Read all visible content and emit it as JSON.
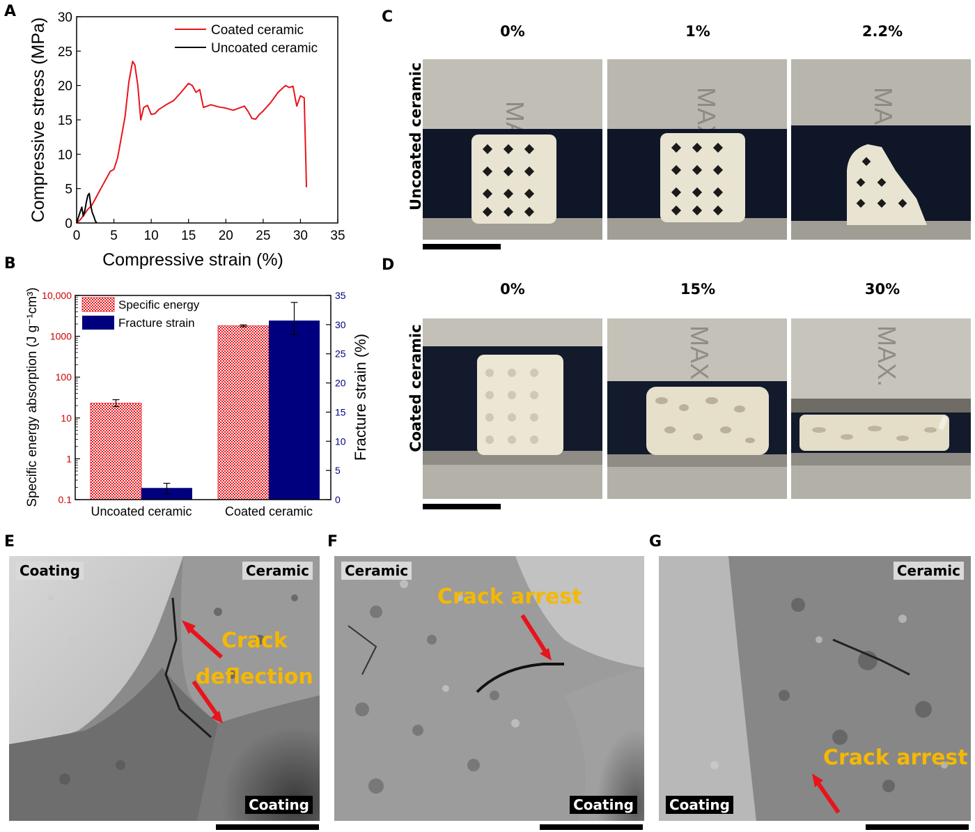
{
  "panels": {
    "a": "A",
    "b": "B",
    "c": "C",
    "d": "D",
    "e": "E",
    "f": "F",
    "g": "G"
  },
  "chart_data": [
    {
      "id": "A",
      "type": "line",
      "xlabel": "Compressive strain (%)",
      "ylabel": "Compressive stress (MPa)",
      "xlim": [
        0,
        35
      ],
      "ylim": [
        0,
        30
      ],
      "xticks": [
        0,
        5,
        10,
        15,
        20,
        25,
        30,
        35
      ],
      "yticks": [
        0,
        5,
        10,
        15,
        20,
        25,
        30
      ],
      "legend_position": "top-right",
      "series": [
        {
          "name": "Coated ceramic",
          "color": "#e8141b",
          "x": [
            0,
            0.5,
            1.0,
            1.5,
            2.0,
            2.5,
            3.0,
            3.5,
            4.0,
            4.5,
            5.0,
            5.5,
            6.0,
            6.5,
            7.0,
            7.5,
            7.8,
            8.2,
            8.6,
            9.0,
            9.5,
            10.0,
            10.5,
            11,
            12,
            13,
            14,
            15,
            15.5,
            16,
            16.5,
            17,
            18,
            19,
            20,
            21,
            22,
            22.5,
            23,
            23.5,
            24,
            24.5,
            25,
            26,
            27,
            28,
            28.5,
            29,
            29.5,
            30,
            30.5,
            30.7,
            30.8
          ],
          "y": [
            0,
            0.5,
            1.2,
            2.0,
            2.5,
            3.5,
            4.5,
            5.5,
            6.5,
            7.5,
            7.8,
            9.5,
            12.5,
            15.5,
            20.5,
            23.5,
            23.0,
            20.0,
            15.0,
            16.8,
            17.1,
            15.8,
            15.9,
            16.5,
            17.2,
            17.8,
            19.0,
            20.3,
            20.0,
            19.0,
            19.4,
            16.8,
            17.2,
            16.9,
            16.7,
            16.4,
            16.8,
            17.0,
            16.2,
            15.2,
            15.1,
            15.8,
            16.3,
            17.5,
            19.0,
            20.0,
            19.7,
            19.9,
            17.0,
            18.5,
            18.2,
            10.0,
            5.2
          ]
        },
        {
          "name": "Uncoated ceramic",
          "color": "#000000",
          "x": [
            0,
            0.3,
            0.5,
            0.7,
            0.9,
            1.1,
            1.3,
            1.5,
            1.7,
            1.9,
            2.1,
            2.3,
            2.5,
            2.7
          ],
          "y": [
            0,
            1.0,
            1.7,
            2.3,
            1.0,
            1.8,
            3.0,
            4.0,
            4.3,
            2.5,
            1.5,
            1.0,
            0.3,
            0
          ]
        }
      ]
    },
    {
      "id": "B",
      "type": "bar",
      "categories": [
        "Uncoated ceramic",
        "Coated ceramic"
      ],
      "left_axis": {
        "label": "Specific energy absorption (J g⁻¹cm³)",
        "scale": "log",
        "ylim": [
          0.1,
          10000
        ],
        "ticklabels": [
          "0.1",
          "1",
          "10",
          "100",
          "1000",
          "10,000"
        ],
        "color": "#cc0000"
      },
      "right_axis": {
        "label": "Fracture strain (%)",
        "ylim": [
          0,
          35
        ],
        "ticks": [
          0,
          5,
          10,
          15,
          20,
          25,
          30,
          35
        ],
        "color": "#00007f"
      },
      "series": [
        {
          "name": "Specific energy",
          "axis": "left",
          "values": [
            23,
            1800
          ],
          "error_low": [
            19,
            1700
          ],
          "error_high": [
            28,
            1900
          ],
          "color": "#e8141b",
          "pattern": "dotted"
        },
        {
          "name": "Fracture strain",
          "axis": "right",
          "values": [
            2.0,
            30.7
          ],
          "error_low": [
            1.0,
            28.3
          ],
          "error_high": [
            2.8,
            33.8
          ],
          "color": "#00007f"
        }
      ],
      "legend_position": "top-left"
    }
  ],
  "panel_c": {
    "row_label": "Uncoated ceramic",
    "columns": [
      "0%",
      "1%",
      "2.2%"
    ]
  },
  "panel_d": {
    "row_label": "Coated ceramic",
    "columns": [
      "0%",
      "15%",
      "30%"
    ]
  },
  "panel_e": {
    "tags": [
      "Coating",
      "Ceramic",
      "Coating"
    ],
    "note_line1": "Crack",
    "note_line2": "deflection"
  },
  "panel_f": {
    "tags": [
      "Ceramic",
      "Coating"
    ],
    "note": "Crack arrest"
  },
  "panel_g": {
    "tags": [
      "Ceramic",
      "Coating"
    ],
    "note": "Crack arrest"
  }
}
